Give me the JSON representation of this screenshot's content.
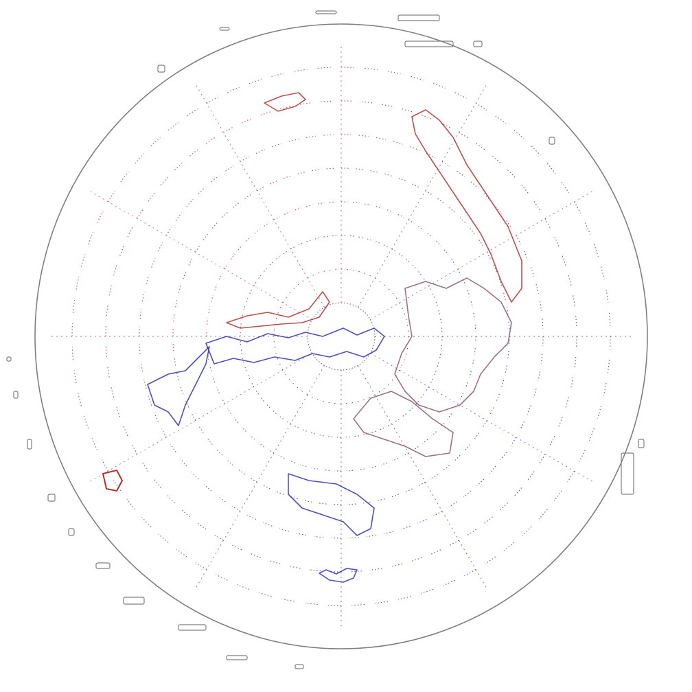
{
  "map": {
    "projection": "north-polar-azimuthal",
    "center": "north-pole",
    "graticule": {
      "latitudes_deg": [
        80,
        70,
        60,
        50,
        40,
        30,
        20,
        10,
        0,
        -10,
        -20,
        -30
      ],
      "longitude_step_deg": 30
    },
    "colors": {
      "background": "#ffffff",
      "outer_land": "#7f7f7f",
      "hemisphere_a": "#b03030",
      "hemisphere_b": "#3030b0",
      "mix": "#8a5a70"
    }
  }
}
